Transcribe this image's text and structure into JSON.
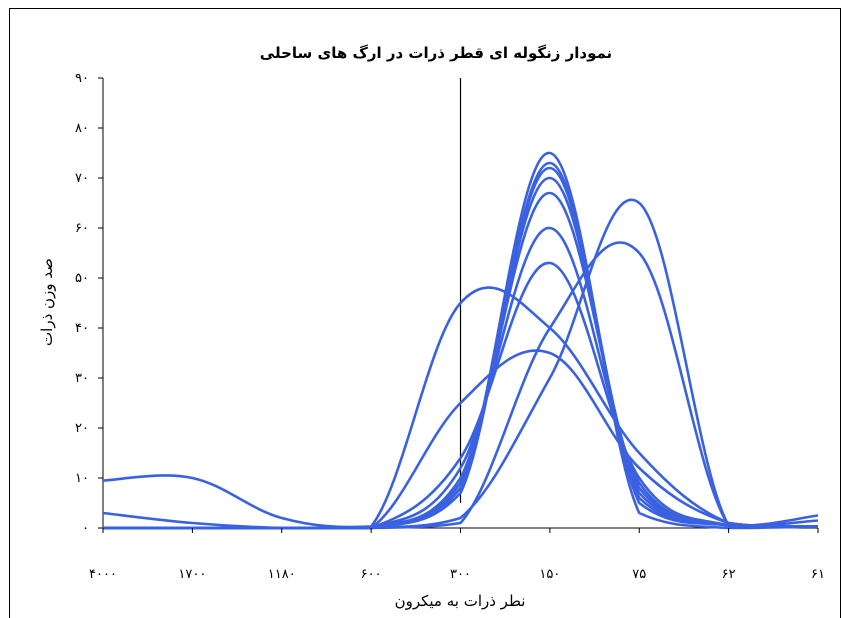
{
  "chart_data": {
    "type": "line",
    "title": "نمودار زنگوله ای قطر ذرات در ارگ های ساحلی",
    "xlabel": "نطر ذرات به میکرون",
    "ylabel": "صد وزن ذرات",
    "categories": [
      "۴۰۰۰",
      "۱۷۰۰",
      "۱۱۸۰",
      "۶۰۰",
      "۳۰۰",
      "۱۵۰",
      "۷۵",
      "۶۲",
      "۶۱"
    ],
    "y_ticks": [
      "۰",
      "۱۰",
      "۲۰",
      "۳۰",
      "۴۰",
      "۵۰",
      "۶۰",
      "۷۰",
      "۸۰",
      "۹۰"
    ],
    "ylim": [
      0,
      90
    ],
    "grid": false,
    "legend": "none",
    "line_color": "#3a62e0",
    "reference_line_at_category": "۳۰۰",
    "series": [
      {
        "values": [
          9.5,
          10,
          2,
          0.3,
          8,
          75,
          3,
          0,
          0.3
        ]
      },
      {
        "values": [
          0,
          0,
          0,
          0,
          7,
          73,
          5,
          0.5,
          0.3
        ]
      },
      {
        "values": [
          0,
          0,
          0,
          0,
          8,
          72,
          6,
          0.5,
          0.3
        ]
      },
      {
        "values": [
          0,
          0,
          0,
          0,
          9,
          70,
          7,
          0.5,
          0.3
        ]
      },
      {
        "values": [
          0,
          0,
          0,
          0,
          10,
          67,
          8,
          0.5,
          0.3
        ]
      },
      {
        "values": [
          0,
          0,
          0,
          0,
          12,
          60,
          9,
          0.5,
          0.3
        ]
      },
      {
        "values": [
          0,
          0,
          0,
          0,
          14,
          53,
          10,
          0.5,
          0.3
        ]
      },
      {
        "values": [
          3,
          1,
          0,
          0,
          25,
          35,
          12,
          1,
          0.3
        ]
      },
      {
        "values": [
          0,
          0,
          0,
          0.3,
          45,
          40,
          15,
          1,
          0.3
        ]
      },
      {
        "values": [
          0,
          0,
          0,
          0,
          2,
          30,
          65,
          0.5,
          2.5
        ]
      },
      {
        "values": [
          0,
          0,
          0,
          0,
          1,
          40,
          55,
          0.5,
          1.5
        ]
      }
    ]
  }
}
